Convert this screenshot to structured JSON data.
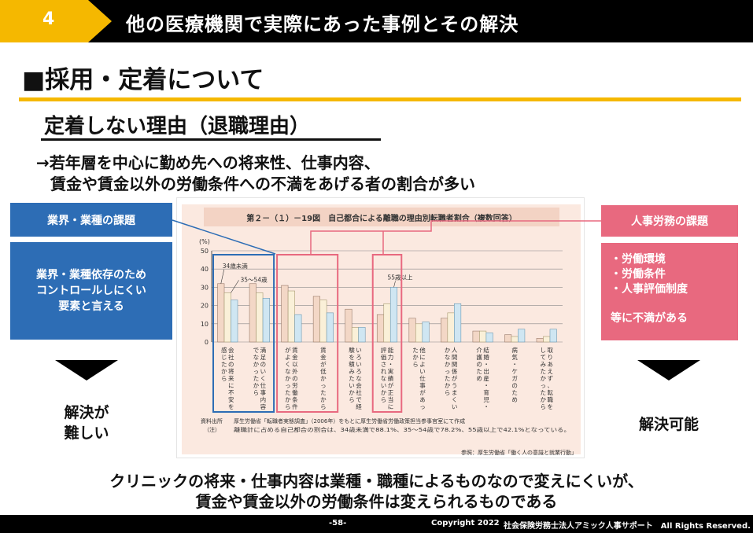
{
  "header": {
    "number": "4",
    "title": "他の医療機関で実際にあった事例とその解決"
  },
  "section_title": "■採用・定着について",
  "sub_title": "定着しない理由（退職理由）",
  "lead": {
    "line1": "→若年層を中心に勤め先への将来性、仕事内容、",
    "line2": "賃金や賃金以外の労働条件への不満をあげる者の割合が多い"
  },
  "left_box": {
    "head": "業界・業種の課題",
    "body": [
      "業界・業種依存のため",
      "コントロールしにくい",
      "要素と言える"
    ]
  },
  "right_box": {
    "head": "人事労務の課題",
    "items": [
      "・労働環境",
      "・労働条件",
      "・人事評価制度"
    ],
    "tail": "等に不満がある"
  },
  "verdict_left": [
    "解決が",
    "難しい"
  ],
  "verdict_right": "解決可能",
  "bottom": {
    "line1": "クリニックの将来・仕事内容は業種・職種によるものなので変えにくいが、",
    "line2": "賃金や賃金以外の労働条件は変えられるものである"
  },
  "footer": {
    "page": "-58-",
    "copyright": "Copyright 2022",
    "company": "社会保険労務士法人アミック人事サポート　All Rights Reserved."
  },
  "colors": {
    "accent": "#f5b800",
    "blue": "#2d6db5",
    "pink": "#e8697f"
  },
  "chart_data": {
    "type": "bar",
    "title": "第２－（１）－19図　自己都合による離職の理由別転職者割合（複数回答）",
    "ylabel": "(%)",
    "ylim": [
      0,
      50
    ],
    "yticks": [
      0,
      10,
      20,
      30,
      40,
      50
    ],
    "series_labels": [
      "34歳未満",
      "35～54歳",
      "55歳以上"
    ],
    "categories": [
      "会社の将来に不安を感じたから",
      "満足のいく仕事内容でなかったから",
      "賃金以外の労働条件がよくなかったから",
      "賃金が低かったから",
      "いろいろな会社で経験を積みたいから",
      "能力・実績が正当に評価されないから",
      "他によい仕事があったから",
      "人間関係がうまくいかなかったから",
      "結婚・出産・育児・介護のため",
      "病気・ケガのため",
      "取りあえず、転職をしてみたかったから"
    ],
    "series": [
      {
        "values": [
          32,
          32,
          31,
          25,
          18,
          15,
          13,
          13,
          6,
          4,
          2
        ]
      },
      {
        "values": [
          27,
          27,
          28,
          23,
          8,
          21,
          10,
          16,
          6,
          3,
          3
        ]
      },
      {
        "values": [
          23,
          24,
          15,
          16,
          8,
          30,
          11,
          21,
          5,
          7,
          7
        ]
      }
    ],
    "source_label": "資料出所",
    "source": "厚生労働省「転職者実態調査」（2006年）をもとに厚生労働省労働政策担当参事官室にて作成",
    "note_label": "（注）",
    "note": "離職計に占める自己都合の割合は、34歳未満で88.1%、35～54歳で78.2%、55歳以上で42.1%となっている。",
    "reference": "参照：厚生労働省「働く人の意識と就業行動」"
  }
}
